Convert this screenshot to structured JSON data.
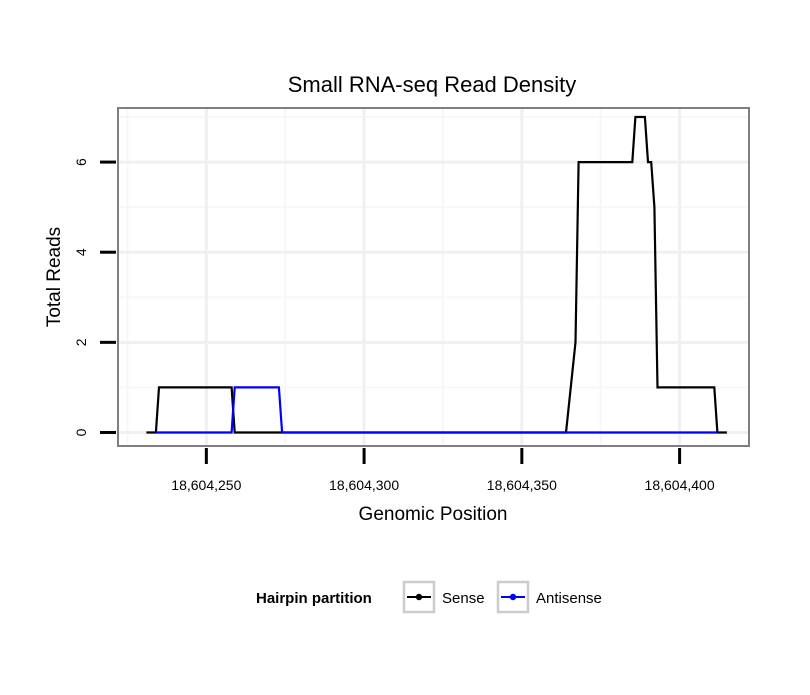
{
  "chart_data": {
    "type": "line",
    "title": "Small RNA-seq Read Density",
    "xlabel": "Genomic Position",
    "ylabel": "Total Reads",
    "xlim": [
      18604222,
      18604422
    ],
    "ylim": [
      -0.3,
      7.2
    ],
    "x_ticks": [
      18604250,
      18604300,
      18604350,
      18604400
    ],
    "x_tick_labels": [
      "18,604,250",
      "18,604,300",
      "18,604,350",
      "18,604,400"
    ],
    "y_ticks": [
      0,
      2,
      4,
      6
    ],
    "y_tick_labels": [
      "0",
      "2",
      "4",
      "6"
    ],
    "grid": true,
    "legend": {
      "title": "Hairpin partition",
      "placement": "bottom"
    },
    "series": [
      {
        "name": "Sense",
        "color": "#000000",
        "x": [
          18604231,
          18604234,
          18604235,
          18604258,
          18604259,
          18604364,
          18604367,
          18604368,
          18604385,
          18604386,
          18604389,
          18604390,
          18604391,
          18604392,
          18604393,
          18604394,
          18604411,
          18604412,
          18604415
        ],
        "y": [
          0,
          0,
          1,
          1,
          0,
          0,
          2,
          6,
          6,
          7,
          7,
          6,
          6,
          5,
          1,
          1,
          1,
          0,
          0
        ]
      },
      {
        "name": "Antisense",
        "color": "#0000ff",
        "x": [
          18604234,
          18604258,
          18604259,
          18604273,
          18604274,
          18604412
        ],
        "y": [
          0,
          0,
          1,
          1,
          0,
          0
        ]
      }
    ]
  }
}
